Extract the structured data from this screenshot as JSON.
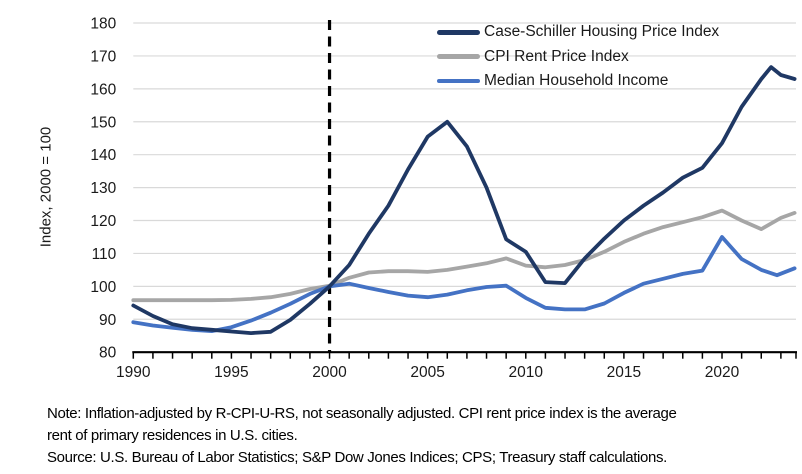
{
  "chart_data": {
    "type": "line",
    "title": "",
    "xlabel": "",
    "ylabel": "Index, 2000 = 100",
    "xlim": [
      1990,
      2023.77
    ],
    "ylim": [
      80,
      180
    ],
    "y_ticks": [
      80,
      90,
      100,
      110,
      120,
      130,
      140,
      150,
      160,
      170,
      180
    ],
    "x_major_ticks": [
      1990,
      1995,
      2000,
      2005,
      2010,
      2015,
      2020
    ],
    "x_minor_tick_interval": 1,
    "grid": "horizontal",
    "legend_position": "top-right-inside",
    "reference_line_x": 2000,
    "series": [
      {
        "name": "Case-Schiller Housing Price Index",
        "color": "#1F3864",
        "points": [
          [
            1990,
            94.2
          ],
          [
            1991,
            91
          ],
          [
            1992,
            88.5
          ],
          [
            1993,
            87.3
          ],
          [
            1994,
            86.8
          ],
          [
            1995,
            86.3
          ],
          [
            1996,
            85.8
          ],
          [
            1997,
            86.2
          ],
          [
            1998,
            89.8
          ],
          [
            1999,
            94.7
          ],
          [
            2000,
            100
          ],
          [
            2001,
            106.5
          ],
          [
            2002,
            116
          ],
          [
            2003,
            124.5
          ],
          [
            2004,
            135.5
          ],
          [
            2005,
            145.5
          ],
          [
            2006,
            150
          ],
          [
            2007,
            142.5
          ],
          [
            2008,
            130
          ],
          [
            2009,
            114.3
          ],
          [
            2010,
            110.5
          ],
          [
            2011,
            101.3
          ],
          [
            2012,
            101
          ],
          [
            2013,
            108.5
          ],
          [
            2014,
            114.5
          ],
          [
            2015,
            120
          ],
          [
            2016,
            124.5
          ],
          [
            2017,
            128.5
          ],
          [
            2018,
            133
          ],
          [
            2019,
            136
          ],
          [
            2020,
            143.5
          ],
          [
            2021,
            154.5
          ],
          [
            2022,
            163
          ],
          [
            2022.5,
            166.6
          ],
          [
            2023,
            164.2
          ],
          [
            2023.7,
            163
          ]
        ]
      },
      {
        "name": "CPI Rent Price Index",
        "color": "#A6A6A6",
        "points": [
          [
            1990,
            95.8
          ],
          [
            1991,
            95.8
          ],
          [
            1992,
            95.8
          ],
          [
            1993,
            95.8
          ],
          [
            1994,
            95.8
          ],
          [
            1995,
            95.9
          ],
          [
            1996,
            96.2
          ],
          [
            1997,
            96.7
          ],
          [
            1998,
            97.7
          ],
          [
            1999,
            99.2
          ],
          [
            2000,
            100.2
          ],
          [
            2001,
            102.6
          ],
          [
            2002,
            104.2
          ],
          [
            2003,
            104.6
          ],
          [
            2004,
            104.6
          ],
          [
            2005,
            104.4
          ],
          [
            2006,
            105
          ],
          [
            2007,
            106
          ],
          [
            2008,
            107
          ],
          [
            2009,
            108.5
          ],
          [
            2010,
            106.3
          ],
          [
            2011,
            105.8
          ],
          [
            2012,
            106.5
          ],
          [
            2013,
            108
          ],
          [
            2014,
            110.5
          ],
          [
            2015,
            113.5
          ],
          [
            2016,
            116
          ],
          [
            2017,
            118
          ],
          [
            2018,
            119.5
          ],
          [
            2019,
            121
          ],
          [
            2020,
            123
          ],
          [
            2021,
            120
          ],
          [
            2022,
            117.4
          ],
          [
            2023,
            120.8
          ],
          [
            2023.7,
            122.3
          ]
        ]
      },
      {
        "name": "Median Household Income",
        "color": "#4472C4",
        "points": [
          [
            1990,
            89.1
          ],
          [
            1991,
            88.1
          ],
          [
            1992,
            87.4
          ],
          [
            1993,
            86.8
          ],
          [
            1994,
            86.4
          ],
          [
            1995,
            87.6
          ],
          [
            1996,
            89.6
          ],
          [
            1997,
            92
          ],
          [
            1998,
            94.7
          ],
          [
            1999,
            97.7
          ],
          [
            2000,
            100
          ],
          [
            2001,
            100.8
          ],
          [
            2002,
            99.5
          ],
          [
            2003,
            98.3
          ],
          [
            2004,
            97.2
          ],
          [
            2005,
            96.7
          ],
          [
            2006,
            97.5
          ],
          [
            2007,
            98.8
          ],
          [
            2008,
            99.8
          ],
          [
            2009,
            100.2
          ],
          [
            2010,
            96.5
          ],
          [
            2011,
            93.5
          ],
          [
            2012,
            93
          ],
          [
            2013,
            93
          ],
          [
            2014,
            94.8
          ],
          [
            2015,
            98
          ],
          [
            2016,
            100.8
          ],
          [
            2017,
            102.3
          ],
          [
            2018,
            103.8
          ],
          [
            2019,
            104.8
          ],
          [
            2020,
            115
          ],
          [
            2021,
            108.3
          ],
          [
            2022,
            105
          ],
          [
            2022.8,
            103.4
          ],
          [
            2023.7,
            105.5
          ]
        ]
      }
    ]
  },
  "colors": {
    "gridline": "#D9D9D9",
    "axis": "#000000",
    "reference_line": "#000000",
    "tick_text": "#1a1a1a"
  },
  "footnotes": {
    "note_lines": [
      "Note: Inflation-adjusted by R-CPI-U-RS, not seasonally adjusted. CPI rent price index is the average",
      "rent of primary residences in U.S. cities."
    ],
    "source": "Source: U.S. Bureau of Labor Statistics; S&P Dow Jones Indices; CPS; Treasury staff calculations."
  }
}
